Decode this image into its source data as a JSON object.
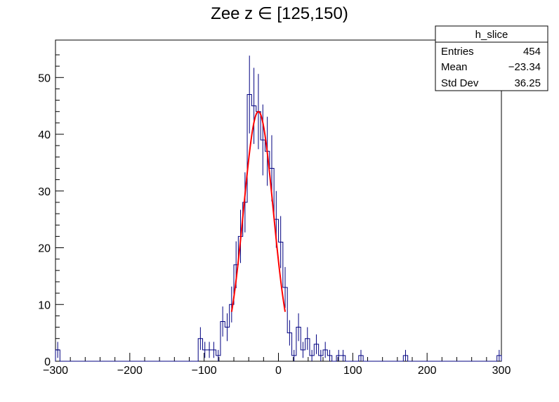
{
  "chart_data": {
    "type": "histogram",
    "title": "Zee z ∈ [125,150)",
    "xlabel": "",
    "ylabel": "",
    "xlim": [
      -300,
      300
    ],
    "ylim": [
      0,
      56.6
    ],
    "bin_width": 6,
    "x_ticks": [
      {
        "value": -300,
        "label": "−300"
      },
      {
        "value": -200,
        "label": "−200"
      },
      {
        "value": -100,
        "label": "−100"
      },
      {
        "value": 0,
        "label": "0"
      },
      {
        "value": 100,
        "label": "100"
      },
      {
        "value": 200,
        "label": "200"
      },
      {
        "value": 300,
        "label": "300"
      }
    ],
    "y_ticks": [
      {
        "value": 0,
        "label": "0"
      },
      {
        "value": 10,
        "label": "10"
      },
      {
        "value": 20,
        "label": "20"
      },
      {
        "value": 30,
        "label": "30"
      },
      {
        "value": 40,
        "label": "40"
      },
      {
        "value": 50,
        "label": "50"
      }
    ],
    "bins": [
      {
        "x": -300,
        "y": 2
      },
      {
        "x": -108,
        "y": 4
      },
      {
        "x": -102,
        "y": 2
      },
      {
        "x": -96,
        "y": 2
      },
      {
        "x": -90,
        "y": 2
      },
      {
        "x": -84,
        "y": 1
      },
      {
        "x": -78,
        "y": 7
      },
      {
        "x": -72,
        "y": 6
      },
      {
        "x": -66,
        "y": 10
      },
      {
        "x": -60,
        "y": 17
      },
      {
        "x": -54,
        "y": 22
      },
      {
        "x": -48,
        "y": 28
      },
      {
        "x": -42,
        "y": 47
      },
      {
        "x": -36,
        "y": 45
      },
      {
        "x": -30,
        "y": 44
      },
      {
        "x": -24,
        "y": 39
      },
      {
        "x": -18,
        "y": 37
      },
      {
        "x": -12,
        "y": 34
      },
      {
        "x": -6,
        "y": 25
      },
      {
        "x": 0,
        "y": 21
      },
      {
        "x": 6,
        "y": 13
      },
      {
        "x": 12,
        "y": 5
      },
      {
        "x": 18,
        "y": 1
      },
      {
        "x": 24,
        "y": 6
      },
      {
        "x": 30,
        "y": 2
      },
      {
        "x": 36,
        "y": 4
      },
      {
        "x": 42,
        "y": 1
      },
      {
        "x": 48,
        "y": 3
      },
      {
        "x": 54,
        "y": 1
      },
      {
        "x": 60,
        "y": 2
      },
      {
        "x": 66,
        "y": 1
      },
      {
        "x": 78,
        "y": 1
      },
      {
        "x": 84,
        "y": 1
      },
      {
        "x": 108,
        "y": 1
      },
      {
        "x": 168,
        "y": 1
      },
      {
        "x": 294,
        "y": 1
      }
    ],
    "fit": {
      "type": "gaussian",
      "amplitude": 44,
      "mean": -27,
      "sigma": 20,
      "range": [
        -63,
        9
      ]
    },
    "stats_box": {
      "name": "h_slice",
      "rows": [
        {
          "label": "Entries",
          "value": "454"
        },
        {
          "label": "Mean",
          "value": "−23.34"
        },
        {
          "label": "Std Dev",
          "value": "36.25"
        }
      ]
    },
    "colors": {
      "histogram": "#000080",
      "fit": "#ff0000",
      "frame": "#000000"
    }
  }
}
